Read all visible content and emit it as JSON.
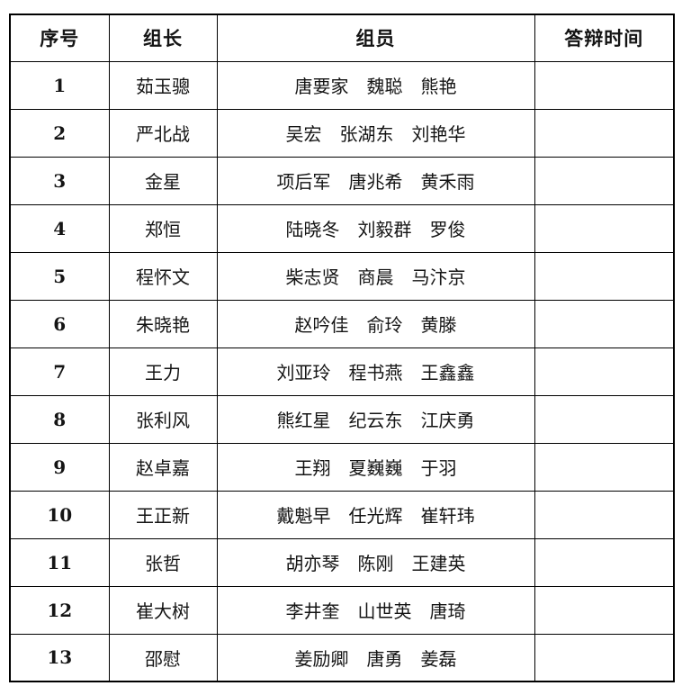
{
  "table": {
    "headers": {
      "index": "序号",
      "leader": "组长",
      "members": "组员",
      "time": "答辩时间"
    },
    "rows": [
      {
        "index": "1",
        "leader": "茹玉骢",
        "members": "唐要家　魏聪　熊艳",
        "time": ""
      },
      {
        "index": "2",
        "leader": "严北战",
        "members": "吴宏　张湖东　刘艳华",
        "time": ""
      },
      {
        "index": "3",
        "leader": "金星",
        "members": "项后军　唐兆希　黄禾雨",
        "time": ""
      },
      {
        "index": "4",
        "leader": "郑恒",
        "members": "陆晓冬　刘毅群　罗俊",
        "time": ""
      },
      {
        "index": "5",
        "leader": "程怀文",
        "members": "柴志贤　商晨　马汴京",
        "time": ""
      },
      {
        "index": "6",
        "leader": "朱晓艳",
        "members": "赵吟佳　俞玲　黄滕",
        "time": ""
      },
      {
        "index": "7",
        "leader": "王力",
        "members": "刘亚玲　程书燕　王鑫鑫",
        "time": ""
      },
      {
        "index": "8",
        "leader": "张利风",
        "members": "熊红星　纪云东　江庆勇",
        "time": ""
      },
      {
        "index": "9",
        "leader": "赵卓嘉",
        "members": "王翔　夏巍巍　于羽",
        "time": ""
      },
      {
        "index": "10",
        "leader": "王正新",
        "members": "戴魁早　任光辉　崔轩玮",
        "time": ""
      },
      {
        "index": "11",
        "leader": "张哲",
        "members": "胡亦琴　陈刚　王建英",
        "time": ""
      },
      {
        "index": "12",
        "leader": "崔大树",
        "members": "李井奎　山世英　唐琦",
        "time": ""
      },
      {
        "index": "13",
        "leader": "邵慰",
        "members": "姜励卿　唐勇　姜磊",
        "time": ""
      }
    ]
  }
}
